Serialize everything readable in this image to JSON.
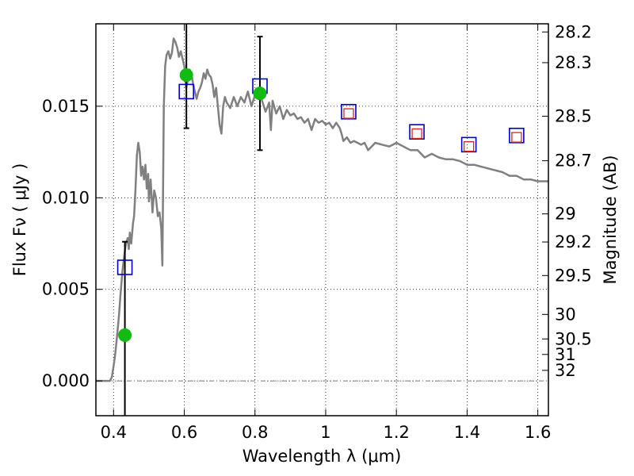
{
  "chart_data": {
    "type": "scatter",
    "title": "",
    "xlabel": "Wavelength  λ (μm)",
    "ylabel": "Flux  Fν  ( μJy )",
    "ylabel_right": "Magnitude (AB)",
    "xlim": [
      0.35,
      1.63
    ],
    "ylim": [
      -0.0019,
      0.0195
    ],
    "grid": true,
    "x_ticks": [
      0.4,
      0.6,
      0.8,
      1.0,
      1.2,
      1.4,
      1.6
    ],
    "x_tick_labels": [
      "0.4",
      "0.6",
      "0.8",
      "1",
      "1.2",
      "1.4",
      "1.6"
    ],
    "y_ticks": [
      0.0,
      0.005,
      0.01,
      0.015
    ],
    "y_tick_labels": [
      "0.000",
      "0.005",
      "0.010",
      "0.015"
    ],
    "magnitude_ticks": [
      {
        "label": "28.2",
        "mag": 28.2
      },
      {
        "label": "28.3",
        "mag": 28.3
      },
      {
        "label": "28.5",
        "mag": 28.5
      },
      {
        "label": "28.7",
        "mag": 28.7
      },
      {
        "label": "29",
        "mag": 29.0
      },
      {
        "label": "29.2",
        "mag": 29.2
      },
      {
        "label": "29.5",
        "mag": 29.5
      },
      {
        "label": "30",
        "mag": 30.0
      },
      {
        "label": "30.5",
        "mag": 30.5
      },
      {
        "label": "31",
        "mag": 31.0
      },
      {
        "label": "32",
        "mag": 32.0
      }
    ],
    "series": [
      {
        "style": "line",
        "color": "#808080",
        "x": [
          0.35,
          0.39,
          0.395,
          0.4,
          0.405,
          0.41,
          0.415,
          0.42,
          0.425,
          0.43,
          0.435,
          0.44,
          0.443,
          0.446,
          0.45,
          0.455,
          0.458,
          0.462,
          0.466,
          0.47,
          0.474,
          0.478,
          0.482,
          0.486,
          0.49,
          0.494,
          0.498,
          0.5,
          0.505,
          0.51,
          0.515,
          0.52,
          0.525,
          0.53,
          0.535,
          0.538,
          0.542,
          0.546,
          0.55,
          0.555,
          0.56,
          0.565,
          0.57,
          0.575,
          0.58,
          0.585,
          0.59,
          0.595,
          0.6,
          0.605,
          0.61,
          0.615,
          0.62,
          0.625,
          0.63,
          0.635,
          0.64,
          0.645,
          0.65,
          0.655,
          0.66,
          0.665,
          0.67,
          0.675,
          0.68,
          0.685,
          0.69,
          0.695,
          0.7,
          0.705,
          0.71,
          0.715,
          0.72,
          0.73,
          0.74,
          0.75,
          0.76,
          0.77,
          0.78,
          0.79,
          0.8,
          0.81,
          0.82,
          0.83,
          0.84,
          0.845,
          0.85,
          0.86,
          0.87,
          0.88,
          0.89,
          0.9,
          0.91,
          0.92,
          0.93,
          0.94,
          0.95,
          0.96,
          0.97,
          0.98,
          0.99,
          1.0,
          1.01,
          1.02,
          1.03,
          1.04,
          1.045,
          1.05,
          1.06,
          1.07,
          1.08,
          1.09,
          1.1,
          1.11,
          1.12,
          1.13,
          1.14,
          1.16,
          1.18,
          1.2,
          1.22,
          1.24,
          1.26,
          1.28,
          1.3,
          1.32,
          1.34,
          1.36,
          1.38,
          1.4,
          1.42,
          1.44,
          1.46,
          1.48,
          1.5,
          1.52,
          1.54,
          1.56,
          1.58,
          1.6,
          1.63
        ],
        "y": [
          0.0,
          0.0,
          0.0002,
          0.0008,
          0.0015,
          0.0025,
          0.0035,
          0.0048,
          0.006,
          0.0068,
          0.0075,
          0.0078,
          0.0072,
          0.0081,
          0.0075,
          0.0086,
          0.009,
          0.0105,
          0.0123,
          0.013,
          0.0125,
          0.0112,
          0.0117,
          0.011,
          0.0118,
          0.0105,
          0.0113,
          0.0098,
          0.011,
          0.0092,
          0.0104,
          0.01,
          0.009,
          0.0092,
          0.0083,
          0.0063,
          0.015,
          0.0172,
          0.0178,
          0.018,
          0.0176,
          0.0179,
          0.0187,
          0.0185,
          0.0182,
          0.0177,
          0.018,
          0.0176,
          0.0172,
          0.016,
          0.0164,
          0.017,
          0.0168,
          0.0162,
          0.0158,
          0.0154,
          0.0158,
          0.016,
          0.0163,
          0.0168,
          0.0165,
          0.017,
          0.0167,
          0.0166,
          0.0162,
          0.0155,
          0.016,
          0.015,
          0.014,
          0.0135,
          0.015,
          0.0155,
          0.0152,
          0.0149,
          0.0155,
          0.015,
          0.0155,
          0.0152,
          0.0158,
          0.015,
          0.0156,
          0.016,
          0.0153,
          0.0147,
          0.0152,
          0.0137,
          0.0153,
          0.0146,
          0.015,
          0.0143,
          0.0148,
          0.0145,
          0.0146,
          0.0143,
          0.0144,
          0.0141,
          0.0143,
          0.0137,
          0.0143,
          0.0141,
          0.0142,
          0.014,
          0.0141,
          0.0138,
          0.0141,
          0.0138,
          0.0135,
          0.0131,
          0.0133,
          0.013,
          0.0131,
          0.013,
          0.0129,
          0.013,
          0.0126,
          0.0128,
          0.013,
          0.0129,
          0.0128,
          0.013,
          0.0128,
          0.0126,
          0.0126,
          0.0122,
          0.0124,
          0.0122,
          0.0121,
          0.0121,
          0.012,
          0.0118,
          0.0118,
          0.0117,
          0.0116,
          0.0115,
          0.0114,
          0.0112,
          0.0112,
          0.011,
          0.011,
          0.0109,
          0.0109
        ]
      },
      {
        "style": "points-errorbars",
        "marker": "circle",
        "color": "#11bb11",
        "points": [
          {
            "x": 0.432,
            "y": 0.0025,
            "ylo": -0.0019,
            "yhi": 0.0076
          },
          {
            "x": 0.606,
            "y": 0.0167,
            "ylo": 0.0138,
            "yhi": 0.0195
          },
          {
            "x": 0.814,
            "y": 0.0157,
            "ylo": 0.0126,
            "yhi": 0.0188
          }
        ]
      },
      {
        "style": "points",
        "marker": "open-square",
        "color": "#0000cc",
        "points": [
          {
            "x": 0.432,
            "y": 0.0062
          },
          {
            "x": 0.606,
            "y": 0.0158
          },
          {
            "x": 0.814,
            "y": 0.0161
          },
          {
            "x": 1.065,
            "y": 0.0147
          },
          {
            "x": 1.258,
            "y": 0.0136
          },
          {
            "x": 1.405,
            "y": 0.0129
          },
          {
            "x": 1.54,
            "y": 0.0134
          }
        ]
      },
      {
        "style": "points",
        "marker": "open-square-small",
        "color": "#dd2222",
        "points": [
          {
            "x": 1.065,
            "y": 0.0146
          },
          {
            "x": 1.258,
            "y": 0.0135
          },
          {
            "x": 1.405,
            "y": 0.0128
          },
          {
            "x": 1.54,
            "y": 0.0133
          }
        ]
      }
    ]
  }
}
